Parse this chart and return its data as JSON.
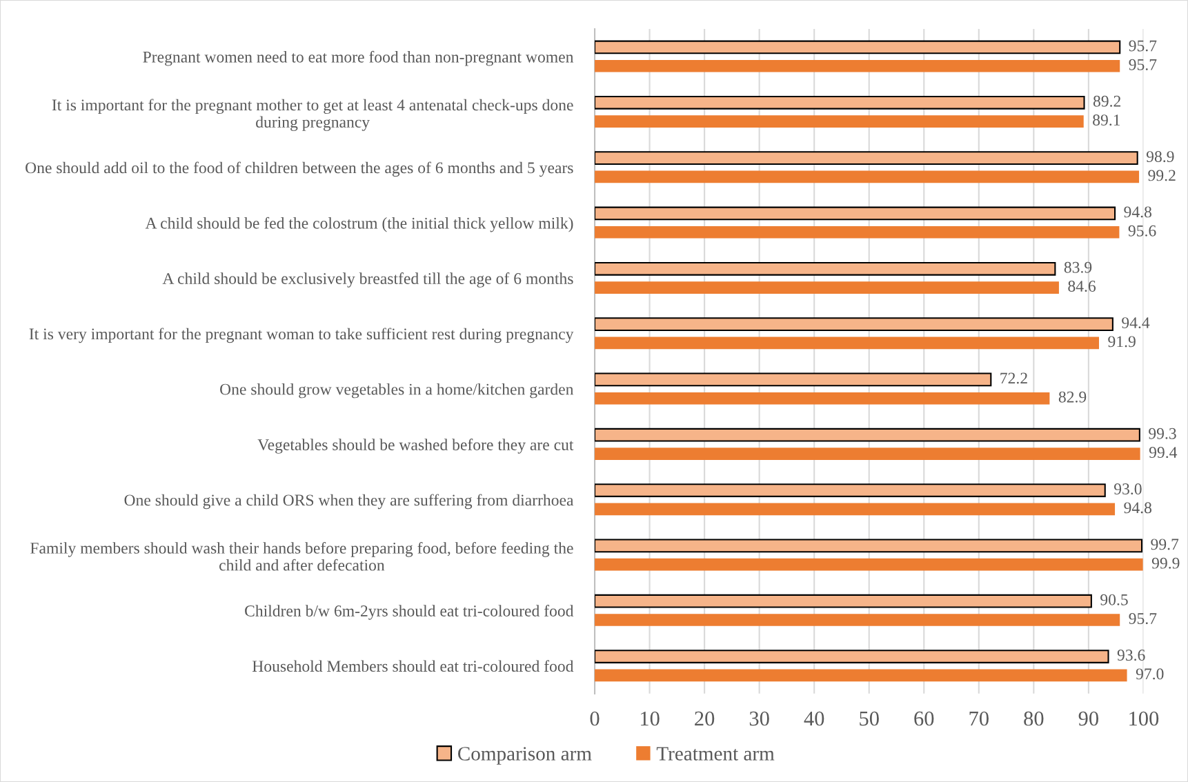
{
  "chart_data": {
    "type": "bar",
    "orientation": "horizontal",
    "categories": [
      "Pregnant women need to eat more food than non-pregnant women",
      "It is important for the pregnant mother to get at least 4 antenatal check-ups done\nduring pregnancy",
      "One should add oil to the food of children between the ages of 6 months and 5 years",
      "A child should be fed the colostrum (the initial thick yellow milk)",
      "A child should be exclusively breastfed till the age of 6 months",
      "It is very important for the pregnant woman to take sufficient rest during pregnancy",
      "One should grow vegetables in a home/kitchen garden",
      "Vegetables should be washed before they are cut",
      "One should give a child ORS when they are suffering from diarrhoea",
      "Family members should wash their hands before preparing food, before feeding the\nchild and after defecation",
      "Children b/w 6m-2yrs should eat tri-coloured food",
      "Household Members should eat tri-coloured food"
    ],
    "series": [
      {
        "name": "Comparison arm",
        "color": "#f6b489",
        "values": [
          95.7,
          89.2,
          98.9,
          94.8,
          83.9,
          94.4,
          72.2,
          99.3,
          93.0,
          99.7,
          90.5,
          93.6
        ],
        "value_labels": [
          "95.7",
          "89.2",
          "98.9",
          "94.8",
          "83.9",
          "94.4",
          "72.2",
          "99.3",
          "93.0",
          "99.7",
          "90.5",
          "93.6"
        ]
      },
      {
        "name": "Treatment arm",
        "color": "#ed7d31",
        "values": [
          95.7,
          89.1,
          99.2,
          95.6,
          84.6,
          91.9,
          82.9,
          99.4,
          94.8,
          99.9,
          95.7,
          97.0
        ],
        "value_labels": [
          "95.7",
          "89.1",
          "99.2",
          "95.6",
          "84.6",
          "91.9",
          "82.9",
          "99.4",
          "94.8",
          "99.9",
          "95.7",
          "97.0"
        ]
      }
    ],
    "xlim": [
      0,
      100
    ],
    "xticks": [
      0,
      10,
      20,
      30,
      40,
      50,
      60,
      70,
      80,
      90,
      100
    ],
    "grid": "x",
    "legend": "bottom"
  }
}
